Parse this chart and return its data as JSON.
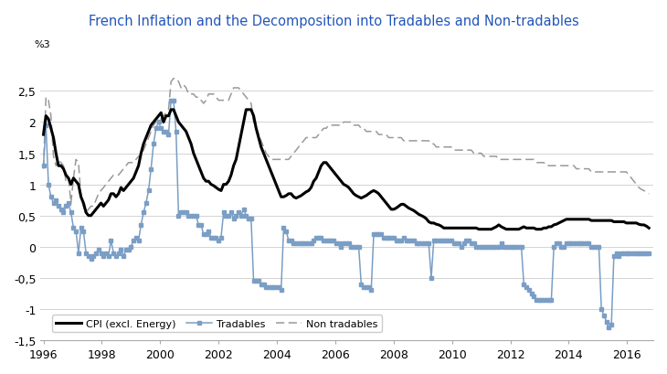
{
  "title": "French Inflation and the Decomposition into Tradables and Non-tradables",
  "title_color": "#2255BB",
  "ylabel": "%3",
  "ylim": [
    -1.5,
    3.0
  ],
  "yticks": [
    -1.5,
    -1.0,
    -0.5,
    0.0,
    0.5,
    1.0,
    1.5,
    2.0,
    2.5
  ],
  "ytick_labels": [
    "-1,5",
    "-1",
    "-0,5",
    "0",
    "0,5",
    "1",
    "1,5",
    "2",
    "2,5"
  ],
  "xlim_start": 1995.9,
  "xlim_end": 2016.9,
  "xticks": [
    1996,
    1998,
    2000,
    2002,
    2004,
    2006,
    2008,
    2010,
    2012,
    2014,
    2016
  ],
  "legend_labels": [
    "CPI (excl. Energy)",
    "Tradables",
    "Non tradables"
  ],
  "cpi_color": "#000000",
  "tradables_color": "#7A9EC5",
  "nontradables_color": "#999999",
  "cpi_lw": 2.2,
  "tradables_lw": 1.1,
  "nontradables_lw": 1.1,
  "cpi": [
    1.8,
    2.1,
    2.05,
    1.9,
    1.75,
    1.5,
    1.3,
    1.3,
    1.25,
    1.15,
    1.1,
    1.0,
    1.1,
    1.05,
    1.0,
    0.8,
    0.7,
    0.55,
    0.5,
    0.5,
    0.55,
    0.6,
    0.65,
    0.7,
    0.65,
    0.7,
    0.75,
    0.85,
    0.85,
    0.8,
    0.85,
    0.95,
    0.9,
    0.95,
    1.0,
    1.05,
    1.1,
    1.2,
    1.3,
    1.5,
    1.65,
    1.75,
    1.85,
    1.95,
    2.0,
    2.05,
    2.1,
    2.15,
    2.0,
    2.1,
    2.1,
    2.2,
    2.2,
    2.1,
    2.0,
    1.95,
    1.9,
    1.85,
    1.75,
    1.65,
    1.5,
    1.4,
    1.3,
    1.2,
    1.1,
    1.05,
    1.05,
    1.0,
    0.98,
    0.95,
    0.92,
    0.9,
    1.0,
    1.0,
    1.05,
    1.15,
    1.3,
    1.4,
    1.6,
    1.8,
    2.0,
    2.2,
    2.2,
    2.2,
    2.1,
    1.9,
    1.75,
    1.6,
    1.5,
    1.4,
    1.3,
    1.2,
    1.1,
    1.0,
    0.9,
    0.8,
    0.8,
    0.82,
    0.85,
    0.85,
    0.8,
    0.78,
    0.8,
    0.82,
    0.85,
    0.88,
    0.9,
    0.95,
    1.05,
    1.1,
    1.2,
    1.3,
    1.35,
    1.35,
    1.3,
    1.25,
    1.2,
    1.15,
    1.1,
    1.05,
    1.0,
    0.98,
    0.95,
    0.9,
    0.85,
    0.82,
    0.8,
    0.78,
    0.8,
    0.82,
    0.85,
    0.88,
    0.9,
    0.88,
    0.85,
    0.8,
    0.75,
    0.7,
    0.65,
    0.6,
    0.6,
    0.62,
    0.65,
    0.68,
    0.68,
    0.65,
    0.62,
    0.6,
    0.58,
    0.55,
    0.52,
    0.5,
    0.48,
    0.45,
    0.4,
    0.38,
    0.38,
    0.36,
    0.35,
    0.33,
    0.3,
    0.3,
    0.3,
    0.3,
    0.3,
    0.3,
    0.3,
    0.3,
    0.3,
    0.3,
    0.3,
    0.3,
    0.3,
    0.3,
    0.28,
    0.28,
    0.28,
    0.28,
    0.28,
    0.28,
    0.3,
    0.32,
    0.35,
    0.32,
    0.3,
    0.28,
    0.28,
    0.28,
    0.28,
    0.28,
    0.28,
    0.3,
    0.32,
    0.3,
    0.3,
    0.3,
    0.3,
    0.28,
    0.28,
    0.28,
    0.3,
    0.3,
    0.32,
    0.32,
    0.35,
    0.36,
    0.38,
    0.4,
    0.42,
    0.44,
    0.44,
    0.44,
    0.44,
    0.44,
    0.44,
    0.44,
    0.44,
    0.44,
    0.44,
    0.42,
    0.42,
    0.42,
    0.42,
    0.42,
    0.42,
    0.42,
    0.42,
    0.42,
    0.4,
    0.4,
    0.4,
    0.4,
    0.4,
    0.38,
    0.38,
    0.38,
    0.38,
    0.38,
    0.36,
    0.35,
    0.35,
    0.33,
    0.3
  ],
  "tradables": [
    1.3,
    1.95,
    1.0,
    0.8,
    0.7,
    0.75,
    0.65,
    0.6,
    0.55,
    0.65,
    0.7,
    0.55,
    0.3,
    0.25,
    -0.1,
    0.3,
    0.25,
    -0.1,
    -0.15,
    -0.2,
    -0.15,
    -0.1,
    -0.05,
    -0.1,
    -0.15,
    -0.1,
    -0.15,
    0.1,
    -0.1,
    -0.15,
    -0.1,
    -0.05,
    -0.15,
    -0.05,
    -0.05,
    0.0,
    0.1,
    0.15,
    0.1,
    0.35,
    0.55,
    0.7,
    0.9,
    1.25,
    1.65,
    1.9,
    2.0,
    1.9,
    1.85,
    1.85,
    1.8,
    2.35,
    2.35,
    1.85,
    0.5,
    0.55,
    0.55,
    0.55,
    0.5,
    0.5,
    0.5,
    0.5,
    0.35,
    0.35,
    0.2,
    0.2,
    0.25,
    0.15,
    0.15,
    0.15,
    0.1,
    0.15,
    0.55,
    0.5,
    0.5,
    0.55,
    0.45,
    0.5,
    0.55,
    0.5,
    0.6,
    0.5,
    0.45,
    0.45,
    -0.55,
    -0.55,
    -0.55,
    -0.6,
    -0.6,
    -0.65,
    -0.65,
    -0.65,
    -0.65,
    -0.65,
    -0.65,
    -0.7,
    0.3,
    0.25,
    0.1,
    0.1,
    0.05,
    0.05,
    0.05,
    0.05,
    0.05,
    0.05,
    0.05,
    0.05,
    0.1,
    0.15,
    0.15,
    0.15,
    0.1,
    0.1,
    0.1,
    0.1,
    0.1,
    0.05,
    0.05,
    0.0,
    0.05,
    0.05,
    0.05,
    0.0,
    0.0,
    0.0,
    0.0,
    -0.6,
    -0.65,
    -0.65,
    -0.65,
    -0.7,
    0.2,
    0.2,
    0.2,
    0.2,
    0.15,
    0.15,
    0.15,
    0.15,
    0.15,
    0.1,
    0.1,
    0.1,
    0.15,
    0.1,
    0.1,
    0.1,
    0.1,
    0.05,
    0.05,
    0.05,
    0.05,
    0.05,
    0.05,
    -0.5,
    0.1,
    0.1,
    0.1,
    0.1,
    0.1,
    0.1,
    0.1,
    0.1,
    0.05,
    0.05,
    0.05,
    0.0,
    0.05,
    0.1,
    0.1,
    0.05,
    0.05,
    0.0,
    0.0,
    0.0,
    0.0,
    0.0,
    0.0,
    0.0,
    0.0,
    0.0,
    0.0,
    0.05,
    0.0,
    0.0,
    0.0,
    0.0,
    0.0,
    0.0,
    0.0,
    0.0,
    -0.6,
    -0.65,
    -0.7,
    -0.75,
    -0.8,
    -0.85,
    -0.85,
    -0.85,
    -0.85,
    -0.85,
    -0.85,
    -0.85,
    0.0,
    0.05,
    0.05,
    0.0,
    0.0,
    0.05,
    0.05,
    0.05,
    0.05,
    0.05,
    0.05,
    0.05,
    0.05,
    0.05,
    0.05,
    0.0,
    0.0,
    0.0,
    0.0,
    -1.0,
    -1.1,
    -1.2,
    -1.3,
    -1.25,
    -0.15,
    -0.1,
    -0.15,
    -0.1,
    -0.1,
    -0.1,
    -0.1,
    -0.1,
    -0.1,
    -0.1,
    -0.1,
    -0.1,
    -0.1,
    -0.1,
    -0.1
  ],
  "nontradables": [
    1.25,
    2.4,
    2.35,
    2.1,
    1.45,
    1.3,
    1.4,
    1.35,
    1.3,
    1.05,
    1.1,
    0.7,
    1.1,
    1.4,
    1.35,
    0.8,
    0.65,
    0.55,
    0.6,
    0.65,
    0.65,
    0.75,
    0.85,
    0.9,
    0.95,
    1.0,
    1.05,
    1.1,
    1.15,
    1.15,
    1.15,
    1.2,
    1.25,
    1.3,
    1.35,
    1.35,
    1.35,
    1.4,
    1.45,
    1.45,
    1.55,
    1.65,
    1.75,
    1.85,
    1.95,
    2.0,
    2.0,
    2.05,
    2.1,
    2.15,
    2.2,
    2.65,
    2.7,
    2.7,
    2.65,
    2.55,
    2.6,
    2.55,
    2.45,
    2.45,
    2.45,
    2.4,
    2.4,
    2.35,
    2.3,
    2.35,
    2.45,
    2.45,
    2.45,
    2.4,
    2.35,
    2.35,
    2.35,
    2.35,
    2.35,
    2.45,
    2.55,
    2.55,
    2.55,
    2.5,
    2.45,
    2.4,
    2.35,
    2.3,
    2.0,
    1.9,
    1.8,
    1.7,
    1.6,
    1.5,
    1.45,
    1.4,
    1.4,
    1.4,
    1.4,
    1.4,
    1.4,
    1.4,
    1.4,
    1.45,
    1.5,
    1.55,
    1.6,
    1.65,
    1.7,
    1.75,
    1.75,
    1.75,
    1.75,
    1.75,
    1.8,
    1.85,
    1.9,
    1.9,
    1.95,
    1.95,
    1.95,
    1.95,
    1.95,
    1.95,
    2.0,
    2.0,
    2.0,
    2.0,
    1.95,
    1.95,
    1.95,
    1.9,
    1.9,
    1.85,
    1.85,
    1.85,
    1.85,
    1.85,
    1.8,
    1.8,
    1.8,
    1.8,
    1.75,
    1.75,
    1.75,
    1.75,
    1.75,
    1.75,
    1.7,
    1.7,
    1.7,
    1.7,
    1.7,
    1.7,
    1.7,
    1.7,
    1.7,
    1.7,
    1.7,
    1.65,
    1.65,
    1.6,
    1.6,
    1.6,
    1.6,
    1.6,
    1.6,
    1.6,
    1.55,
    1.55,
    1.55,
    1.55,
    1.55,
    1.55,
    1.55,
    1.55,
    1.5,
    1.5,
    1.5,
    1.5,
    1.45,
    1.45,
    1.45,
    1.45,
    1.45,
    1.45,
    1.4,
    1.4,
    1.4,
    1.4,
    1.4,
    1.4,
    1.4,
    1.4,
    1.4,
    1.4,
    1.4,
    1.4,
    1.4,
    1.4,
    1.4,
    1.35,
    1.35,
    1.35,
    1.35,
    1.3,
    1.3,
    1.3,
    1.3,
    1.3,
    1.3,
    1.3,
    1.3,
    1.3,
    1.3,
    1.3,
    1.3,
    1.25,
    1.25,
    1.25,
    1.25,
    1.25,
    1.25,
    1.2,
    1.2,
    1.2,
    1.2,
    1.2,
    1.2,
    1.2,
    1.2,
    1.2,
    1.2,
    1.2,
    1.2,
    1.2,
    1.2,
    1.2,
    1.15,
    1.1,
    1.05,
    1.0,
    0.95,
    0.92,
    0.9,
    0.88,
    0.85
  ]
}
